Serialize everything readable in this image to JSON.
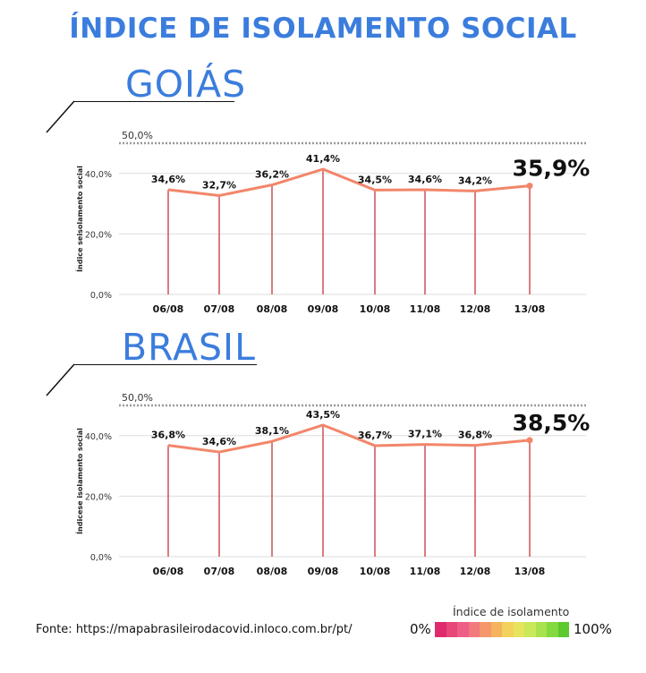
{
  "title": "ÍNDICE DE ISOLAMENTO SOCIAL",
  "source": "Fonte: https://mapabrasileirodacovid.inloco.com.br/pt/",
  "legend": {
    "title": "Índice de isolamento",
    "min_label": "0%",
    "max_label": "100%",
    "colors": [
      "#e02a6e",
      "#e8477a",
      "#ee5e86",
      "#f17a7e",
      "#f4976a",
      "#f4b35c",
      "#f2d25a",
      "#e6e45c",
      "#c9e85a",
      "#a8e24e",
      "#84d93e",
      "#5cc92e"
    ]
  },
  "colors": {
    "line": "#f2866a",
    "drop": "#c9363c",
    "marker": "#f2866a",
    "title": "#3b7ddd"
  },
  "chart_data": [
    {
      "type": "line",
      "title": "GOIÁS",
      "ylabel": "Índice seisolamento social",
      "ylim": [
        0,
        50
      ],
      "y_ticks": [
        {
          "value": 0,
          "label": "0,0%"
        },
        {
          "value": 20,
          "label": "20,0%"
        },
        {
          "value": 40,
          "label": "40,0%"
        }
      ],
      "reference": {
        "value": 50,
        "label": "50,0%"
      },
      "categories": [
        "06/08",
        "07/08",
        "08/08",
        "09/08",
        "10/08",
        "11/08",
        "12/08",
        "13/08"
      ],
      "values": [
        34.6,
        32.7,
        36.2,
        41.4,
        34.5,
        34.6,
        34.2,
        35.9
      ],
      "labels": [
        "34,6%",
        "32,7%",
        "36,2%",
        "41,4%",
        "34,5%",
        "34,6%",
        "34,2%",
        "35,9%"
      ]
    },
    {
      "type": "line",
      "title": "BRASIL",
      "ylabel": "Índicese isolamento social",
      "ylim": [
        0,
        50
      ],
      "y_ticks": [
        {
          "value": 0,
          "label": "0,0%"
        },
        {
          "value": 20,
          "label": "20,0%"
        },
        {
          "value": 40,
          "label": "40,0%"
        }
      ],
      "reference": {
        "value": 50,
        "label": "50,0%"
      },
      "categories": [
        "06/08",
        "07/08",
        "08/08",
        "09/08",
        "10/08",
        "11/08",
        "12/08",
        "13/08"
      ],
      "values": [
        36.8,
        34.6,
        38.1,
        43.5,
        36.7,
        37.1,
        36.8,
        38.5
      ],
      "labels": [
        "36,8%",
        "34,6%",
        "38,1%",
        "43,5%",
        "36,7%",
        "37,1%",
        "36,8%",
        "38,5%"
      ]
    }
  ]
}
